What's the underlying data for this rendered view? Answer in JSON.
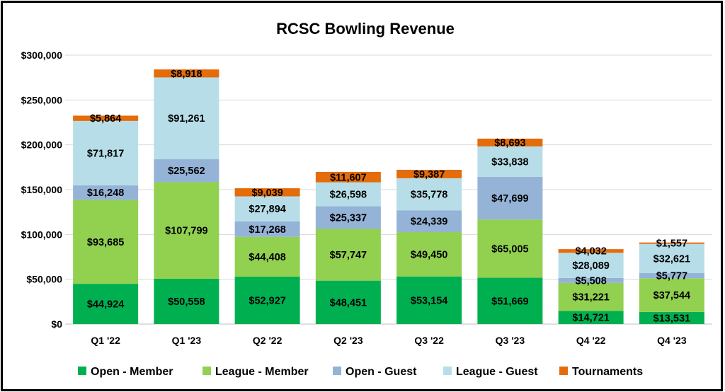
{
  "chart_data": {
    "type": "bar",
    "stacked": true,
    "title": "RCSC Bowling Revenue",
    "categories": [
      "Q1 '22",
      "Q1 '23",
      "Q2 '22",
      "Q2 '23",
      "Q3 '22",
      "Q3 '23",
      "Q4 '22",
      "Q4 '23"
    ],
    "series": [
      {
        "name": "Open - Member",
        "color": "#00b050",
        "values": [
          44924,
          50558,
          52927,
          48451,
          53154,
          51669,
          14721,
          13531
        ]
      },
      {
        "name": "League - Member",
        "color": "#92d050",
        "values": [
          93685,
          107799,
          44408,
          57747,
          49450,
          65005,
          31221,
          37544
        ]
      },
      {
        "name": "Open - Guest",
        "color": "#95b3d7",
        "values": [
          16248,
          25562,
          17268,
          25337,
          24339,
          47699,
          5508,
          5777
        ]
      },
      {
        "name": "League - Guest",
        "color": "#b7dee8",
        "values": [
          71817,
          91261,
          27894,
          26598,
          35778,
          33838,
          28089,
          32621
        ]
      },
      {
        "name": "Tournaments",
        "color": "#e46c0a",
        "values": [
          5864,
          8918,
          9039,
          11607,
          9387,
          8693,
          4032,
          1557
        ]
      }
    ],
    "data_labels": [
      [
        "$44,924",
        "$50,558",
        "$52,927",
        "$48,451",
        "$53,154",
        "$51,669",
        "$14,721",
        "$13,531"
      ],
      [
        "$93,685",
        "$107,799",
        "$44,408",
        "$57,747",
        "$49,450",
        "$65,005",
        "$31,221",
        "$37,544"
      ],
      [
        "$16,248",
        "$25,562",
        "$17,268",
        "$25,337",
        "$24,339",
        "$47,699",
        "$5,508",
        "$5,777"
      ],
      [
        "$71,817",
        "$91,261",
        "$27,894",
        "$26,598",
        "$35,778",
        "$33,838",
        "$28,089",
        "$32,621"
      ],
      [
        "$5,864",
        "$8,918",
        "$9,039",
        "$11,607",
        "$9,387",
        "$8,693",
        "$4,032",
        "$1,557"
      ]
    ],
    "ylim": [
      0,
      300000
    ],
    "y_ticks": [
      0,
      50000,
      100000,
      150000,
      200000,
      250000,
      300000
    ],
    "y_tick_labels": [
      "$0",
      "$50,000",
      "$100,000",
      "$150,000",
      "$200,000",
      "$250,000",
      "$300,000"
    ],
    "grid": true,
    "legend_position": "bottom"
  }
}
